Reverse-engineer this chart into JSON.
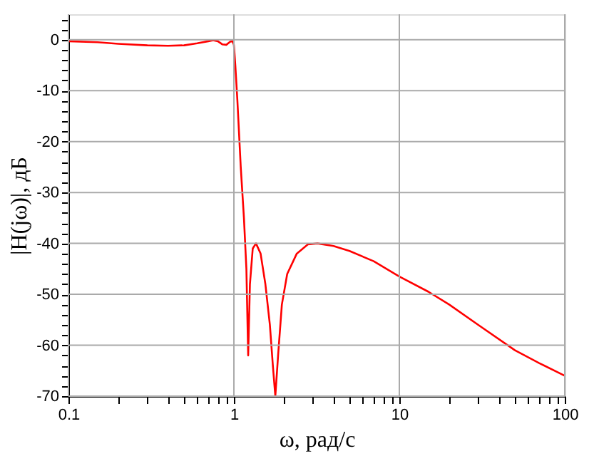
{
  "chart_data": {
    "type": "line",
    "xlabel": "ω, рад/с",
    "ylabel": "|H(jω)|, дБ",
    "log": "x",
    "grid": true,
    "marker": "none",
    "line_style": "solid",
    "x": [
      0.1,
      0.15,
      0.2,
      0.3,
      0.4,
      0.5,
      0.6,
      0.7,
      0.75,
      0.8,
      0.85,
      0.9,
      0.95,
      0.98,
      1.0,
      1.02,
      1.05,
      1.1,
      1.15,
      1.19,
      1.22,
      1.25,
      1.3,
      1.36,
      1.45,
      1.55,
      1.65,
      1.72,
      1.78,
      1.85,
      1.95,
      2.1,
      2.4,
      2.8,
      3.2,
      4,
      5,
      7,
      10,
      15,
      20,
      30,
      50,
      70,
      100
    ],
    "series": [
      {
        "color": "#ff0000",
        "values": [
          -0.3,
          -0.5,
          -0.8,
          -1.1,
          -1.2,
          -1.1,
          -0.7,
          -0.3,
          -0.1,
          -0.3,
          -0.9,
          -1.0,
          -0.4,
          -0.3,
          -1.0,
          -5,
          -12,
          -25,
          -35,
          -45,
          -62,
          -48,
          -41,
          -40,
          -42,
          -48,
          -56,
          -64,
          -70,
          -62,
          -52,
          -46,
          -42,
          -40.2,
          -40,
          -40.5,
          -41.5,
          -43.5,
          -46.5,
          -49.5,
          -52,
          -56,
          -61,
          -63.5,
          -66
        ]
      }
    ],
    "xlim": [
      0.1,
      100
    ],
    "xticks": [
      0.1,
      {
        "value": 0.2,
        "label": null
      },
      {
        "value": 0.3,
        "label": null
      },
      {
        "value": 0.4,
        "label": null
      },
      {
        "value": 0.5,
        "label": null
      },
      {
        "value": 0.6,
        "label": null
      },
      {
        "value": 0.7,
        "label": null
      },
      {
        "value": 0.8,
        "label": null
      },
      {
        "value": 0.9,
        "label": null
      },
      1,
      {
        "value": 2,
        "label": null
      },
      {
        "value": 3,
        "label": null
      },
      {
        "value": 4,
        "label": null
      },
      {
        "value": 5,
        "label": null
      },
      {
        "value": 6,
        "label": null
      },
      {
        "value": 7,
        "label": null
      },
      {
        "value": 8,
        "label": null
      },
      {
        "value": 9,
        "label": null
      },
      10,
      {
        "value": 20,
        "label": null
      },
      {
        "value": 30,
        "label": null
      },
      {
        "value": 40,
        "label": null
      },
      {
        "value": 50,
        "label": null
      },
      {
        "value": 60,
        "label": null
      },
      {
        "value": 70,
        "label": null
      },
      {
        "value": 80,
        "label": null
      },
      {
        "value": 90,
        "label": null
      },
      100
    ],
    "ylim": [
      -70,
      5
    ],
    "yticks": [
      -70,
      {
        "value": -68,
        "label": null
      },
      {
        "value": -66,
        "label": null
      },
      {
        "value": -64,
        "label": null
      },
      {
        "value": -62,
        "label": null
      },
      -60,
      {
        "value": -58,
        "label": null
      },
      {
        "value": -56,
        "label": null
      },
      {
        "value": -54,
        "label": null
      },
      {
        "value": -52,
        "label": null
      },
      -50,
      {
        "value": -48,
        "label": null
      },
      {
        "value": -46,
        "label": null
      },
      {
        "value": -44,
        "label": null
      },
      {
        "value": -42,
        "label": null
      },
      -40,
      {
        "value": -38,
        "label": null
      },
      {
        "value": -36,
        "label": null
      },
      {
        "value": -34,
        "label": null
      },
      {
        "value": -32,
        "label": null
      },
      -30,
      {
        "value": -28,
        "label": null
      },
      {
        "value": -26,
        "label": null
      },
      {
        "value": -24,
        "label": null
      },
      {
        "value": -22,
        "label": null
      },
      -20,
      {
        "value": -18,
        "label": null
      },
      {
        "value": -16,
        "label": null
      },
      {
        "value": -14,
        "label": null
      },
      {
        "value": -12,
        "label": null
      },
      -10,
      {
        "value": -8,
        "label": null
      },
      {
        "value": -6,
        "label": null
      },
      {
        "value": -4,
        "label": null
      },
      {
        "value": -2,
        "label": null
      },
      0,
      {
        "value": 2,
        "label": null
      },
      {
        "value": 4,
        "label": null
      }
    ]
  }
}
